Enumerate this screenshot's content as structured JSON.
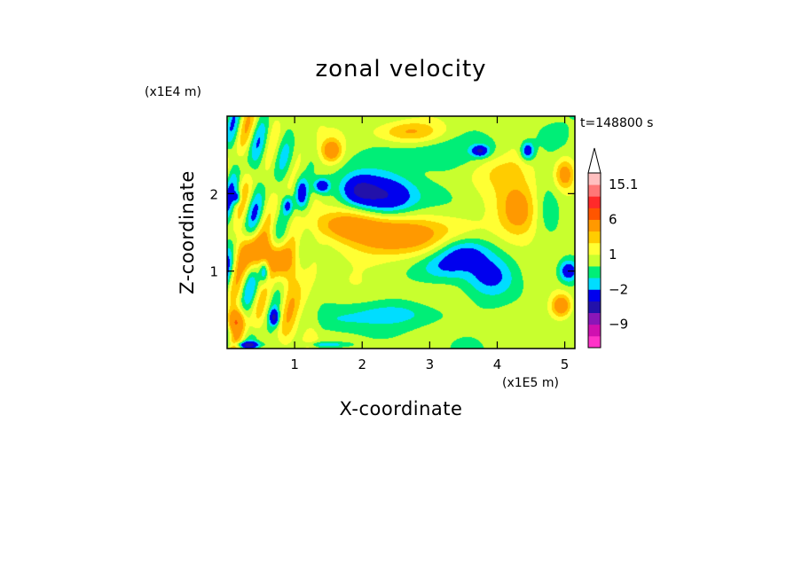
{
  "chart_data": {
    "type": "heatmap",
    "title": "zonal velocity",
    "xlabel": "X-coordinate",
    "ylabel": "Z-coordinate",
    "x_scale_label": "(x1E5 m)",
    "y_scale_label": "(x1E4 m)",
    "time_label": "t=148800 s",
    "xlim": [
      0,
      5.15
    ],
    "ylim": [
      0,
      3.0
    ],
    "x_ticks": [
      1,
      2,
      3,
      4,
      5
    ],
    "y_ticks": [
      1,
      2
    ],
    "x_tick_labels": [
      "1",
      "2",
      "3",
      "4",
      "5"
    ],
    "y_tick_labels": [
      "1",
      "2"
    ],
    "colorbar": {
      "levels": [
        -14,
        -12,
        -9,
        -6,
        -4,
        -2,
        -1,
        0,
        1,
        2,
        3,
        6,
        9,
        12,
        15.1
      ],
      "labels": [
        "15.1",
        "6",
        "1",
        "−2",
        "−9"
      ],
      "label_values": [
        15.1,
        6,
        1,
        -2,
        -9
      ],
      "colors": [
        "#ff33c8",
        "#d010b0",
        "#8a16b8",
        "#2211aa",
        "#0000ee",
        "#00ddff",
        "#00ee77",
        "#c8ff2e",
        "#ffff33",
        "#ffcc00",
        "#ff9900",
        "#ff5500",
        "#ff2a2a",
        "#ff7777",
        "#ffbfbf"
      ],
      "extend_max": true
    },
    "features": [
      {
        "x": 2.35,
        "z": 1.95,
        "value": -4.5,
        "sx": 0.45,
        "sz": 0.28
      },
      {
        "x": 1.95,
        "z": 2.05,
        "value": -3.0,
        "sx": 0.25,
        "sz": 0.18
      },
      {
        "x": 3.5,
        "z": 1.25,
        "value": -4.0,
        "sx": 0.42,
        "sz": 0.22
      },
      {
        "x": 3.9,
        "z": 0.95,
        "value": -2.5,
        "sx": 0.35,
        "sz": 0.25
      },
      {
        "x": 3.2,
        "z": 1.05,
        "value": -1.8,
        "sx": 0.35,
        "sz": 0.18
      },
      {
        "x": 2.6,
        "z": 1.45,
        "value": 4.0,
        "sx": 0.9,
        "sz": 0.28
      },
      {
        "x": 1.75,
        "z": 1.6,
        "value": 3.0,
        "sx": 0.5,
        "sz": 0.2
      },
      {
        "x": 4.35,
        "z": 1.75,
        "value": 4.0,
        "sx": 0.35,
        "sz": 0.35
      },
      {
        "x": 4.1,
        "z": 2.4,
        "value": 2.0,
        "sx": 0.5,
        "sz": 0.3
      },
      {
        "x": 2.6,
        "z": 0.45,
        "value": -1.6,
        "sx": 0.8,
        "sz": 0.16
      },
      {
        "x": 1.6,
        "z": 0.35,
        "value": -1.2,
        "sx": 0.45,
        "sz": 0.18
      },
      {
        "x": 2.9,
        "z": 2.5,
        "value": -1.5,
        "sx": 0.8,
        "sz": 0.22
      },
      {
        "x": 3.95,
        "z": 2.55,
        "value": -1.2,
        "sx": 0.35,
        "sz": 0.2
      },
      {
        "x": 3.75,
        "z": 2.55,
        "value": -4.0,
        "sx": 0.12,
        "sz": 0.07
      },
      {
        "x": 4.45,
        "z": 2.55,
        "value": -4.0,
        "sx": 0.1,
        "sz": 0.12
      },
      {
        "x": 4.7,
        "z": 1.8,
        "value": -2.0,
        "sx": 0.25,
        "sz": 0.3
      },
      {
        "x": 5.05,
        "z": 1.0,
        "value": -4.0,
        "sx": 0.15,
        "sz": 0.15
      },
      {
        "x": 4.95,
        "z": 0.55,
        "value": 4.5,
        "sx": 0.15,
        "sz": 0.15
      },
      {
        "x": 5.0,
        "z": 2.25,
        "value": 4.0,
        "sx": 0.15,
        "sz": 0.2
      },
      {
        "x": 4.75,
        "z": 2.75,
        "value": -1.2,
        "sx": 0.3,
        "sz": 0.2
      },
      {
        "x": 1.0,
        "z": 0.6,
        "value": 2.5,
        "sx": 0.25,
        "sz": 0.5
      },
      {
        "x": 0.75,
        "z": 1.15,
        "value": 3.0,
        "sx": 0.2,
        "sz": 0.2
      },
      {
        "x": 0.4,
        "z": 1.25,
        "value": 3.5,
        "sx": 0.25,
        "sz": 0.25
      },
      {
        "x": 0.12,
        "z": 0.35,
        "value": 5.0,
        "sx": 0.12,
        "sz": 0.15
      },
      {
        "x": 0.7,
        "z": 0.4,
        "value": -4.0,
        "sx": 0.07,
        "sz": 0.1
      },
      {
        "x": 0.55,
        "z": 1.0,
        "value": -4.0,
        "sx": 0.07,
        "sz": 0.15
      },
      {
        "x": 0.15,
        "z": 1.95,
        "value": -3.0,
        "sx": 0.06,
        "sz": 0.08
      },
      {
        "x": 1.1,
        "z": 2.0,
        "value": -4.0,
        "sx": 0.1,
        "sz": 0.2
      },
      {
        "x": 1.4,
        "z": 2.1,
        "value": -4.0,
        "sx": 0.12,
        "sz": 0.1
      },
      {
        "x": 0.9,
        "z": 1.85,
        "value": -3.0,
        "sx": 0.08,
        "sz": 0.12
      },
      {
        "x": 1.55,
        "z": 2.55,
        "value": 4.0,
        "sx": 0.15,
        "sz": 0.15
      },
      {
        "x": 0.3,
        "z": 0.05,
        "value": -4.0,
        "sx": 0.2,
        "sz": 0.04
      },
      {
        "x": 1.5,
        "z": 0.05,
        "value": -2.5,
        "sx": 0.3,
        "sz": 0.04
      },
      {
        "x": 2.7,
        "z": 2.8,
        "value": 3.0,
        "sx": 0.5,
        "sz": 0.15
      }
    ]
  }
}
